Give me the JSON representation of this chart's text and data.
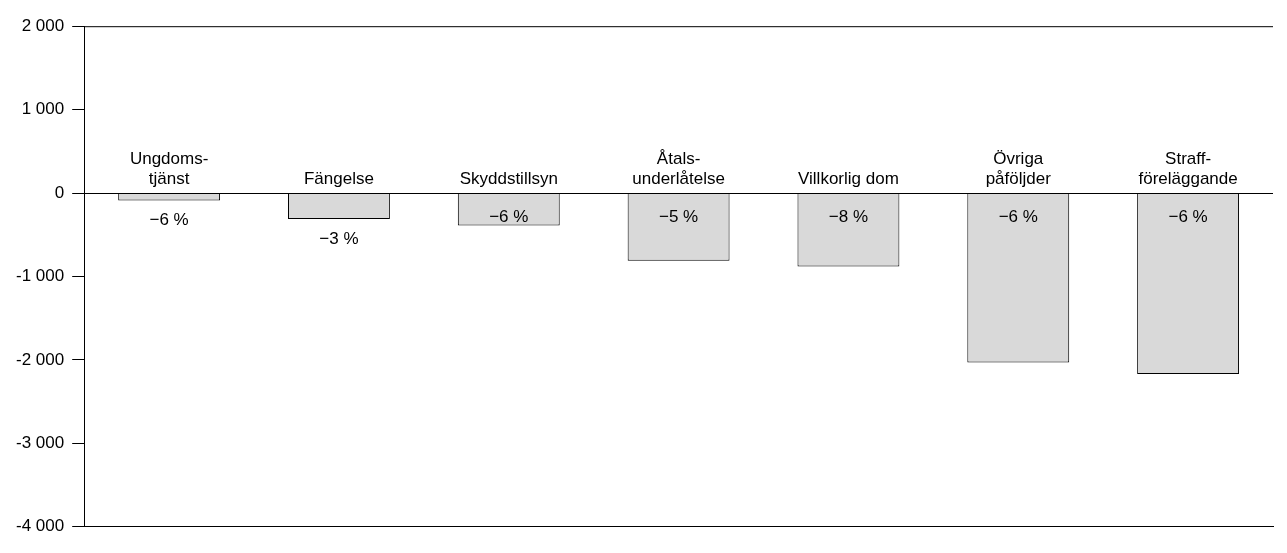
{
  "chart_data": {
    "type": "bar",
    "categories": [
      "Ungdoms-\ntjänst",
      "Fängelse",
      "Skyddstillsyn",
      "Åtals-\nunderlåtelse",
      "Villkorlig dom",
      "Övriga\npåföljder",
      "Straff-\nföreläggande"
    ],
    "values": [
      -90,
      -310,
      -390,
      -810,
      -880,
      -2030,
      -2170
    ],
    "annotations": [
      "−6 %",
      "−3 %",
      "−6 %",
      "−5 %",
      "−8 %",
      "−6 %",
      "−6 %"
    ],
    "color": "#d9d9d9",
    "ylim": [
      -4000,
      2000
    ],
    "yticks": [
      {
        "value": -4000,
        "label": "-4 000"
      },
      {
        "value": -3000,
        "label": "-3 000"
      },
      {
        "value": -2000,
        "label": "-2 000"
      },
      {
        "value": -1000,
        "label": "-1 000"
      },
      0,
      {
        "value": 1000,
        "label": "1 000"
      },
      {
        "value": 2000,
        "label": "2 000"
      }
    ],
    "grid": false,
    "legend": false
  }
}
